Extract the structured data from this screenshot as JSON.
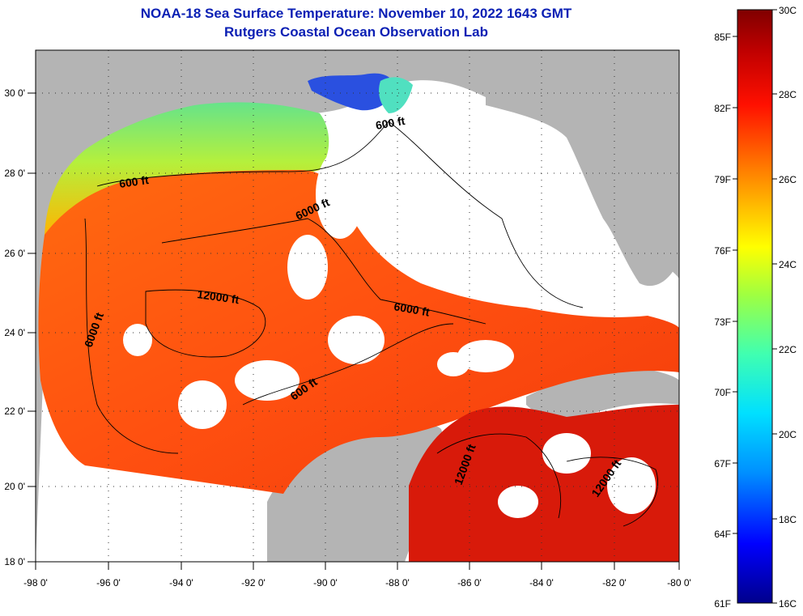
{
  "header": {
    "title": "NOAA-18 Sea Surface Temperature:  November 10, 2022 1643 GMT",
    "subtitle": "Rutgers Coastal Ocean Observation Lab"
  },
  "map": {
    "region": "Gulf of Mexico",
    "lon_ticks": [
      "-98 0'",
      "-96 0'",
      "-94 0'",
      "-92 0'",
      "-90 0'",
      "-88 0'",
      "-86 0'",
      "-84 0'",
      "-82 0'",
      "-80 0'"
    ],
    "lat_ticks": [
      "30 0'",
      "28 0'",
      "26 0'",
      "24 0'",
      "22 0'",
      "20 0'",
      "18 0'"
    ],
    "lon_range": [
      -98,
      -80
    ],
    "lat_range": [
      18,
      31
    ],
    "contour_labels": [
      "600 ft",
      "600 ft",
      "6000 ft",
      "12000 ft",
      "6000 ft",
      "6000 ft",
      "600 ft",
      "12000 ft",
      "12000 ft"
    ],
    "land_color": "#b4b4b4",
    "no_data_color": "#ffffff"
  },
  "colorbar": {
    "celsius_labels": [
      "30C",
      "28C",
      "26C",
      "24C",
      "22C",
      "20C",
      "18C",
      "16C"
    ],
    "fahrenheit_labels": [
      "85F",
      "82F",
      "79F",
      "76F",
      "73F",
      "70F",
      "67F",
      "64F",
      "61F"
    ],
    "range_c": [
      16,
      30
    ],
    "colors": [
      "#00008b",
      "#0000ff",
      "#0090ff",
      "#00e0ff",
      "#40ffb0",
      "#a0ff40",
      "#ffff00",
      "#ffb000",
      "#ff6000",
      "#ff1000",
      "#c00000",
      "#800000"
    ]
  }
}
